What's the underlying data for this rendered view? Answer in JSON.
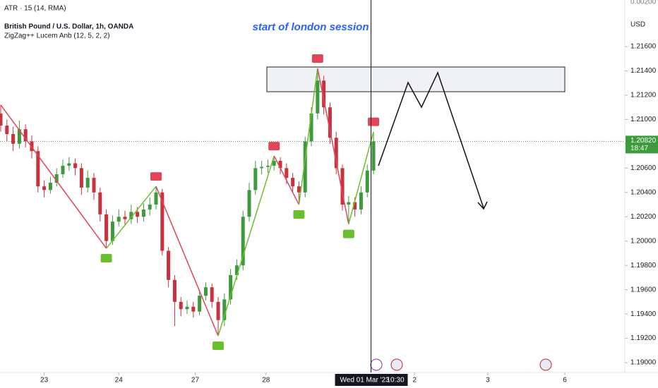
{
  "chart_data": {
    "type": "candlestick",
    "indicator_header": "ATR · 15 (14, RMA)",
    "title": "British Pound / U.S. Dollar, 1h, OANDA",
    "subtitle": "ZigZag++ Lucem Anb (12, 5, 2, 2)",
    "annotation": "start of london session",
    "currency": "USD",
    "top_axis_label": "0.00200",
    "open": [
      1.2105,
      1.2095,
      1.2088,
      1.208,
      1.2092,
      1.2082,
      1.2074,
      1.2045,
      1.2042,
      1.2048,
      1.2055,
      1.2062,
      1.2064,
      1.206,
      1.2044,
      1.2052,
      1.204,
      1.2022,
      1.2,
      1.2016,
      1.202,
      1.2018,
      1.2024,
      1.202,
      1.2026,
      1.203,
      1.204,
      1.1992,
      1.1968,
      1.195,
      1.1944,
      1.1946,
      1.1942,
      1.1955,
      1.1962,
      1.195,
      1.1935,
      1.1952,
      1.1972,
      1.198,
      1.202,
      1.2042,
      1.206,
      1.2061,
      1.2062,
      1.2066,
      1.206,
      1.2052,
      1.2045,
      1.204,
      1.2082,
      1.2105,
      1.2132,
      1.211,
      1.2085,
      1.206,
      1.203,
      1.2032,
      1.2026,
      1.204,
      1.2058
    ],
    "high": [
      1.2112,
      1.21,
      1.2094,
      1.2099,
      1.2096,
      1.2087,
      1.2078,
      1.205,
      1.2053,
      1.206,
      1.2067,
      1.2069,
      1.2068,
      1.2064,
      1.2058,
      1.2056,
      1.2044,
      1.2026,
      1.2021,
      1.2026,
      1.2025,
      1.203,
      1.2028,
      1.2031,
      1.2036,
      1.2045,
      1.2043,
      1.1995,
      1.1972,
      1.1954,
      1.1951,
      1.195,
      1.196,
      1.1966,
      1.1965,
      1.1954,
      1.1957,
      1.1977,
      1.1985,
      1.2025,
      1.2048,
      1.2066,
      1.2066,
      1.2067,
      1.207,
      1.2069,
      1.2064,
      1.2056,
      1.2049,
      1.2086,
      1.211,
      1.2142,
      1.2136,
      1.2114,
      1.209,
      1.2063,
      1.2037,
      1.2036,
      1.2045,
      1.2063,
      1.209
    ],
    "low": [
      1.209,
      1.2082,
      1.2074,
      1.2076,
      1.2077,
      1.2068,
      1.204,
      1.2036,
      1.2039,
      1.2045,
      1.2052,
      1.2058,
      1.2054,
      1.2038,
      1.204,
      1.2034,
      1.2016,
      1.1994,
      1.1997,
      1.2012,
      1.2013,
      1.2014,
      1.2015,
      1.2016,
      1.2021,
      1.2026,
      1.1988,
      1.1962,
      1.193,
      1.1938,
      1.194,
      1.1937,
      1.1939,
      1.1951,
      1.1945,
      1.1922,
      1.193,
      1.1948,
      1.1968,
      1.1976,
      1.2016,
      1.2038,
      1.2055,
      1.2056,
      1.2058,
      1.2055,
      1.2047,
      1.204,
      1.203,
      1.2036,
      1.2078,
      1.21,
      1.2104,
      1.208,
      1.2055,
      1.2025,
      1.2014,
      1.202,
      1.2022,
      1.2036,
      1.2055
    ],
    "close": [
      1.2095,
      1.2088,
      1.208,
      1.2092,
      1.2082,
      1.2074,
      1.2045,
      1.2042,
      1.2048,
      1.2055,
      1.2062,
      1.2064,
      1.206,
      1.2044,
      1.2052,
      1.204,
      1.2022,
      1.2,
      1.2016,
      1.202,
      1.2018,
      1.2024,
      1.202,
      1.2026,
      1.203,
      1.204,
      1.1992,
      1.1968,
      1.195,
      1.1944,
      1.1946,
      1.1942,
      1.1955,
      1.1962,
      1.195,
      1.1935,
      1.1952,
      1.1972,
      1.198,
      1.202,
      1.2042,
      1.206,
      1.2061,
      1.2062,
      1.2066,
      1.206,
      1.2052,
      1.2045,
      1.204,
      1.2082,
      1.2105,
      1.2132,
      1.211,
      1.2085,
      1.206,
      1.203,
      1.2032,
      1.2026,
      1.204,
      1.2058,
      1.2082
    ],
    "up_color": "#3d9a3d",
    "down_color": "#c8323e",
    "zigzag": {
      "x": [
        0,
        17,
        25,
        35,
        44,
        48,
        51,
        56,
        60
      ],
      "values": [
        1.2112,
        1.1994,
        1.2045,
        1.1922,
        1.207,
        1.203,
        1.2142,
        1.2014,
        1.209
      ],
      "up_color": "#6cbf2c",
      "down_color": "#e0455a"
    },
    "last_price": {
      "value": 1.2082,
      "label": "1.20820"
    },
    "countdown": "18:47",
    "crosshair": {
      "value": 59.6,
      "date": "Wed 01 Mar '23",
      "time": "10:30"
    },
    "xlim": [
      -0.114,
      100.45
    ],
    "ylim": [
      1.18919,
      1.21983
    ],
    "xticks": [
      {
        "value": 7,
        "label": "23"
      },
      {
        "value": 19,
        "label": "24"
      },
      {
        "value": 31.3,
        "label": "27"
      },
      {
        "value": 42.7,
        "label": "28"
      },
      {
        "value": 66.6,
        "label": "2"
      },
      {
        "value": 78.4,
        "label": "3"
      },
      {
        "value": 90.8,
        "label": "6"
      }
    ],
    "yticks": [
      {
        "value": 1.19,
        "label": "1.19000"
      },
      {
        "value": 1.192,
        "label": "1.19200"
      },
      {
        "value": 1.194,
        "label": "1.19400"
      },
      {
        "value": 1.196,
        "label": "1.19600"
      },
      {
        "value": 1.198,
        "label": "1.19800"
      },
      {
        "value": 1.2,
        "label": "1.20000"
      },
      {
        "value": 1.202,
        "label": "1.20200"
      },
      {
        "value": 1.204,
        "label": "1.20400"
      },
      {
        "value": 1.206,
        "label": "1.20600"
      },
      {
        "value": 1.208,
        "label": "1.20800"
      },
      {
        "value": 1.21,
        "label": "1.21000"
      },
      {
        "value": 1.212,
        "label": "1.21200"
      },
      {
        "value": 1.214,
        "label": "1.21400"
      },
      {
        "value": 1.216,
        "label": "1.21600"
      }
    ],
    "grid": false
  }
}
